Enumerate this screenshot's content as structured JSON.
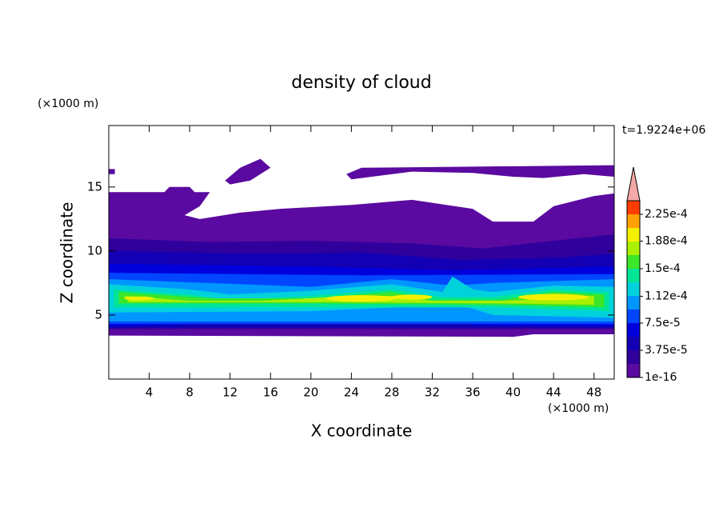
{
  "chart_data": {
    "type": "contour",
    "title": "density of cloud",
    "time_label": "t=1.9224e+06",
    "xlabel": "X coordinate",
    "ylabel": "Z coordinate",
    "x_unit": "(×1000 m)",
    "y_unit": "(×1000 m)",
    "xlim": [
      0,
      50
    ],
    "xticks": [
      4,
      8,
      12,
      16,
      20,
      24,
      28,
      32,
      36,
      40,
      44,
      48
    ],
    "ylim": [
      0,
      19.8
    ],
    "yticks": [
      5,
      10,
      15
    ],
    "colorbar": {
      "levels": [
        1e-16,
        1.875e-05,
        3.75e-05,
        5.625e-05,
        7.5e-05,
        9.375e-05,
        0.0001125,
        0.00013125,
        0.00015,
        0.00016875,
        0.0001875,
        0.00020625,
        0.000225,
        0.00024375
      ],
      "colors": [
        "#5a0aa0",
        "#30009c",
        "#1400b4",
        "#0000dc",
        "#0046ff",
        "#0096ff",
        "#00d2dc",
        "#00e696",
        "#3ce628",
        "#aaf000",
        "#f5f000",
        "#ffa000",
        "#ff3c00"
      ],
      "extend_color": "#f4a8a8",
      "ticks": [
        {
          "value": 1e-16,
          "label": "1e-16"
        },
        {
          "value": 3.75e-05,
          "label": "3.75e-5"
        },
        {
          "value": 7.5e-05,
          "label": "7.5e-5"
        },
        {
          "value": 0.000112,
          "label": "1.12e-4"
        },
        {
          "value": 0.00015,
          "label": "1.5e-4"
        },
        {
          "value": 0.000188,
          "label": "1.88e-4"
        },
        {
          "value": 0.000225,
          "label": "2.25e-4"
        }
      ]
    }
  }
}
